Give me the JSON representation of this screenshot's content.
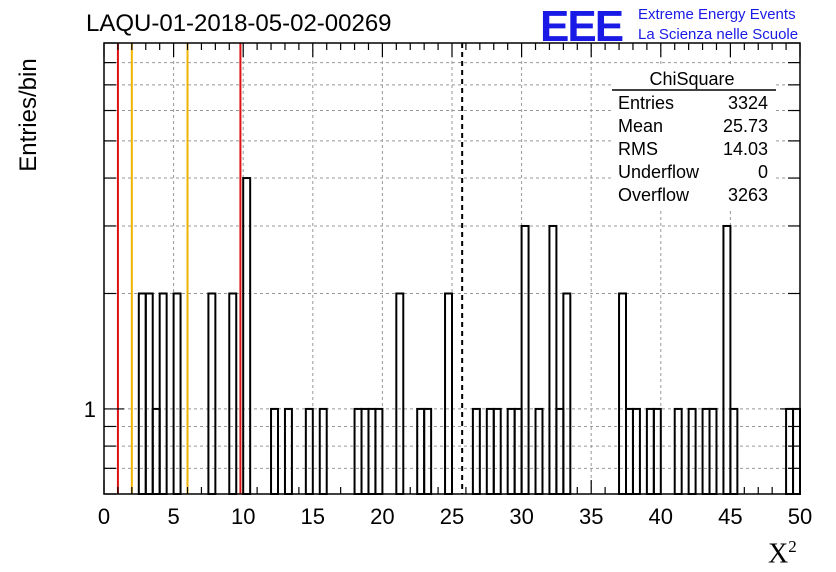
{
  "chart_data": {
    "type": "histogram",
    "title": "LAQU-01-2018-05-02-00269",
    "xlabel": "X",
    "xlabel_superscript": "2",
    "ylabel": "Entries/bin",
    "xlim": [
      0,
      50
    ],
    "bin_width": 0.5,
    "y_scale": "log",
    "ylim": [
      0.6,
      9
    ],
    "x_ticks": [
      0,
      5,
      10,
      15,
      20,
      25,
      30,
      35,
      40,
      45,
      50
    ],
    "y_tick_labels": [
      1
    ],
    "grid": true,
    "bins": [
      {
        "x": 2.5,
        "count": 2
      },
      {
        "x": 3.0,
        "count": 2
      },
      {
        "x": 3.5,
        "count": 1
      },
      {
        "x": 4.0,
        "count": 2
      },
      {
        "x": 5.0,
        "count": 2
      },
      {
        "x": 7.5,
        "count": 2
      },
      {
        "x": 9.0,
        "count": 2
      },
      {
        "x": 10.0,
        "count": 4
      },
      {
        "x": 12.0,
        "count": 1
      },
      {
        "x": 13.0,
        "count": 1
      },
      {
        "x": 14.5,
        "count": 1
      },
      {
        "x": 15.5,
        "count": 1
      },
      {
        "x": 18.0,
        "count": 1
      },
      {
        "x": 18.5,
        "count": 1
      },
      {
        "x": 19.0,
        "count": 1
      },
      {
        "x": 19.5,
        "count": 1
      },
      {
        "x": 21.0,
        "count": 2
      },
      {
        "x": 22.5,
        "count": 1
      },
      {
        "x": 23.0,
        "count": 1
      },
      {
        "x": 24.5,
        "count": 2
      },
      {
        "x": 26.5,
        "count": 1
      },
      {
        "x": 27.5,
        "count": 1
      },
      {
        "x": 28.0,
        "count": 1
      },
      {
        "x": 29.0,
        "count": 1
      },
      {
        "x": 29.5,
        "count": 1
      },
      {
        "x": 30.0,
        "count": 3
      },
      {
        "x": 31.0,
        "count": 1
      },
      {
        "x": 32.0,
        "count": 3
      },
      {
        "x": 32.5,
        "count": 1
      },
      {
        "x": 33.0,
        "count": 2
      },
      {
        "x": 37.0,
        "count": 2
      },
      {
        "x": 37.5,
        "count": 1
      },
      {
        "x": 38.0,
        "count": 1
      },
      {
        "x": 39.0,
        "count": 1
      },
      {
        "x": 39.5,
        "count": 1
      },
      {
        "x": 41.0,
        "count": 1
      },
      {
        "x": 42.0,
        "count": 1
      },
      {
        "x": 43.0,
        "count": 1
      },
      {
        "x": 43.5,
        "count": 1
      },
      {
        "x": 44.5,
        "count": 3
      },
      {
        "x": 45.0,
        "count": 1
      },
      {
        "x": 49.0,
        "count": 1
      },
      {
        "x": 49.5,
        "count": 1
      }
    ],
    "reference_lines": [
      {
        "x": 1.0,
        "color": "#dd1111",
        "style": "solid"
      },
      {
        "x": 2.0,
        "color": "#f0b400",
        "style": "solid"
      },
      {
        "x": 6.0,
        "color": "#f0b400",
        "style": "solid"
      },
      {
        "x": 9.8,
        "color": "#dd1111",
        "style": "solid"
      },
      {
        "x": 25.73,
        "color": "#000000",
        "style": "dashed"
      }
    ],
    "stats_box": {
      "title": "ChiSquare",
      "rows": [
        {
          "label": "Entries",
          "value": "3324"
        },
        {
          "label": "Mean",
          "value": "25.73"
        },
        {
          "label": "RMS",
          "value": "14.03"
        },
        {
          "label": "Underflow",
          "value": "0"
        },
        {
          "label": "Overflow",
          "value": "3263"
        }
      ]
    }
  },
  "logo": {
    "mark": "EEE",
    "line1": "Extreme Energy Events",
    "line2": "La Scienza nelle Scuole"
  }
}
